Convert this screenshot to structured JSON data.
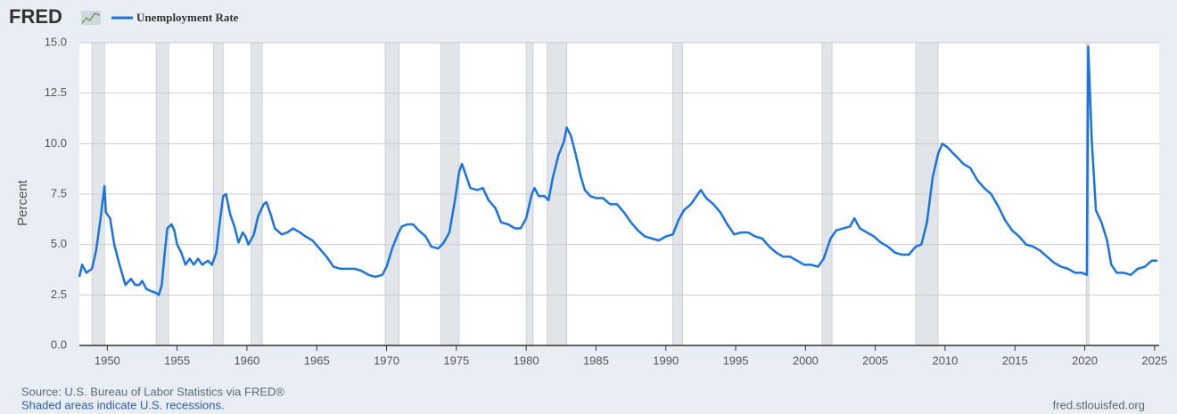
{
  "chart_data": {
    "type": "line",
    "logo": "FRED",
    "ylabel": "Percent",
    "source": "Source: U.S. Bureau of Labor Statistics via FRED®",
    "note": "Shaded areas indicate U.S. recessions.",
    "url": "fred.stlouisfed.org",
    "grid": true,
    "legend": "top-left",
    "xlim": [
      1948,
      2025.33
    ],
    "ylim": [
      0,
      15
    ],
    "xticks": [
      1950,
      1955,
      1960,
      1965,
      1970,
      1975,
      1980,
      1985,
      1990,
      1995,
      2000,
      2005,
      2010,
      2015,
      2020,
      2025
    ],
    "yticks": [
      {
        "value": 0,
        "label": "0.0"
      },
      2.5,
      {
        "value": 5,
        "label": "5.0"
      },
      7.5,
      {
        "value": 10,
        "label": "10.0"
      },
      12.5,
      {
        "value": 15,
        "label": "15.0"
      }
    ],
    "recession_color": "#e1e5ea",
    "recessions": [
      [
        1948.9,
        1949.8
      ],
      [
        1953.5,
        1954.4
      ],
      [
        1957.6,
        1958.3
      ],
      [
        1960.3,
        1961.1
      ],
      [
        1969.9,
        1970.9
      ],
      [
        1973.9,
        1975.2
      ],
      [
        1980.0,
        1980.5
      ],
      [
        1981.5,
        1982.9
      ],
      [
        1990.5,
        1991.2
      ],
      [
        2001.2,
        2001.9
      ],
      [
        2007.9,
        2009.5
      ],
      [
        2020.1,
        2020.3
      ]
    ],
    "x": [
      1948.0,
      1948.2,
      1948.5,
      1948.9,
      1949.2,
      1949.5,
      1949.8,
      1949.9,
      1950.2,
      1950.5,
      1950.8,
      1951.0,
      1951.3,
      1951.7,
      1952.0,
      1952.3,
      1952.5,
      1952.8,
      1953.1,
      1953.5,
      1953.7,
      1953.9,
      1954.1,
      1954.3,
      1954.6,
      1954.8,
      1955.0,
      1955.3,
      1955.6,
      1955.9,
      1956.2,
      1956.5,
      1956.8,
      1957.2,
      1957.5,
      1957.8,
      1958.0,
      1958.3,
      1958.5,
      1958.8,
      1959.1,
      1959.4,
      1959.7,
      1959.9,
      1960.1,
      1960.5,
      1960.8,
      1961.2,
      1961.4,
      1961.7,
      1962.0,
      1962.5,
      1962.9,
      1963.3,
      1963.8,
      1964.2,
      1964.7,
      1965.2,
      1965.7,
      1966.2,
      1966.7,
      1967.2,
      1967.7,
      1968.2,
      1968.7,
      1969.2,
      1969.7,
      1970.0,
      1970.4,
      1970.8,
      1971.1,
      1971.5,
      1971.9,
      1972.3,
      1972.8,
      1973.2,
      1973.7,
      1974.1,
      1974.5,
      1974.9,
      1975.2,
      1975.4,
      1975.7,
      1976.0,
      1976.5,
      1976.9,
      1977.3,
      1977.8,
      1978.2,
      1978.7,
      1979.2,
      1979.6,
      1980.0,
      1980.4,
      1980.6,
      1980.9,
      1981.3,
      1981.6,
      1981.9,
      1982.3,
      1982.7,
      1982.9,
      1983.2,
      1983.5,
      1983.9,
      1984.2,
      1984.6,
      1985.0,
      1985.5,
      1986.0,
      1986.5,
      1987.0,
      1987.5,
      1988.0,
      1988.5,
      1989.0,
      1989.5,
      1990.0,
      1990.5,
      1990.9,
      1991.3,
      1991.8,
      1992.2,
      1992.5,
      1992.9,
      1993.4,
      1993.9,
      1994.4,
      1994.9,
      1995.4,
      1995.9,
      1996.4,
      1996.9,
      1997.4,
      1997.9,
      1998.4,
      1998.9,
      1999.4,
      1999.9,
      2000.4,
      2000.9,
      2001.3,
      2001.8,
      2002.2,
      2002.7,
      2003.2,
      2003.5,
      2003.9,
      2004.4,
      2004.9,
      2005.4,
      2005.9,
      2006.4,
      2006.9,
      2007.4,
      2007.9,
      2008.3,
      2008.7,
      2009.1,
      2009.5,
      2009.8,
      2010.2,
      2010.6,
      2010.9,
      2011.3,
      2011.8,
      2012.3,
      2012.8,
      2013.3,
      2013.8,
      2014.3,
      2014.8,
      2015.3,
      2015.8,
      2016.3,
      2016.8,
      2017.3,
      2017.8,
      2018.3,
      2018.8,
      2019.3,
      2019.8,
      2020.15,
      2020.25,
      2020.5,
      2020.8,
      2021.2,
      2021.6,
      2021.9,
      2022.3,
      2022.8,
      2023.3,
      2023.8,
      2024.3,
      2024.8,
      2025.2
    ],
    "series": [
      {
        "name": "Unemployment Rate",
        "color": "#1a74e0",
        "values": [
          3.4,
          4.0,
          3.6,
          3.8,
          4.7,
          6.2,
          7.9,
          6.6,
          6.3,
          5.0,
          4.2,
          3.7,
          3.0,
          3.3,
          3.0,
          3.0,
          3.2,
          2.8,
          2.7,
          2.6,
          2.5,
          3.0,
          4.5,
          5.8,
          6.0,
          5.7,
          5.0,
          4.6,
          4.0,
          4.3,
          4.0,
          4.3,
          4.0,
          4.2,
          4.0,
          4.6,
          5.8,
          7.4,
          7.5,
          6.5,
          5.9,
          5.1,
          5.6,
          5.4,
          5.0,
          5.5,
          6.4,
          7.0,
          7.1,
          6.5,
          5.8,
          5.5,
          5.6,
          5.8,
          5.6,
          5.4,
          5.2,
          4.8,
          4.4,
          3.9,
          3.8,
          3.8,
          3.8,
          3.7,
          3.5,
          3.4,
          3.5,
          3.9,
          4.8,
          5.5,
          5.9,
          6.0,
          6.0,
          5.7,
          5.4,
          4.9,
          4.8,
          5.1,
          5.6,
          7.2,
          8.6,
          9.0,
          8.4,
          7.8,
          7.7,
          7.8,
          7.2,
          6.8,
          6.1,
          6.0,
          5.8,
          5.8,
          6.3,
          7.5,
          7.8,
          7.4,
          7.4,
          7.2,
          8.3,
          9.4,
          10.1,
          10.8,
          10.4,
          9.6,
          8.4,
          7.7,
          7.4,
          7.3,
          7.3,
          7.0,
          7.0,
          6.6,
          6.1,
          5.7,
          5.4,
          5.3,
          5.2,
          5.4,
          5.5,
          6.2,
          6.7,
          7.0,
          7.4,
          7.7,
          7.3,
          7.0,
          6.6,
          6.0,
          5.5,
          5.6,
          5.6,
          5.4,
          5.3,
          4.9,
          4.6,
          4.4,
          4.4,
          4.2,
          4.0,
          4.0,
          3.9,
          4.3,
          5.3,
          5.7,
          5.8,
          5.9,
          6.3,
          5.8,
          5.6,
          5.4,
          5.1,
          4.9,
          4.6,
          4.5,
          4.5,
          4.9,
          5.0,
          6.1,
          8.3,
          9.5,
          10.0,
          9.8,
          9.5,
          9.3,
          9.0,
          8.8,
          8.2,
          7.8,
          7.5,
          6.9,
          6.2,
          5.7,
          5.4,
          5.0,
          4.9,
          4.7,
          4.4,
          4.1,
          3.9,
          3.8,
          3.6,
          3.6,
          3.5,
          14.8,
          10.2,
          6.7,
          6.1,
          5.2,
          4.0,
          3.6,
          3.6,
          3.5,
          3.8,
          3.9,
          4.2,
          4.2
        ]
      }
    ]
  }
}
